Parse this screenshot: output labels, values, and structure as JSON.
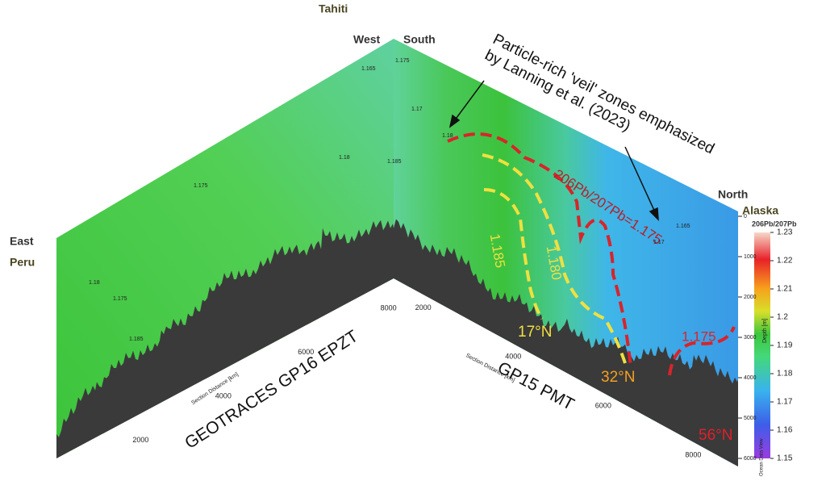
{
  "labels": {
    "tahiti": "Tahiti",
    "west": "West",
    "south": "South",
    "east": "East",
    "peru": "Peru",
    "north": "North",
    "alaska": "Alaska"
  },
  "annotation": {
    "lines": [
      "Particle-rich 'veil' zones emphasized",
      "by Lanning et al. (2023)"
    ]
  },
  "sections": {
    "left": "GEOTRACES GP16 EPZT",
    "right": "GP15 PMT"
  },
  "isolines": {
    "ratio": "206Pb/207Pb=1.175",
    "yellow1": "1.185",
    "yellow2": "1.180",
    "red2": "1.175"
  },
  "latitudes": {
    "lat17": "17°N",
    "lat32": "32°N",
    "lat56": "56°N"
  },
  "contour_labels": [
    "1.165",
    "1.175",
    "1.17",
    "1.18",
    "1.165",
    "1.17",
    "1.185",
    "1.18",
    "1.175",
    "1.175",
    "1.185",
    "1.18"
  ],
  "depth_axis": {
    "label": "Depth [m]",
    "lim": [
      0,
      6000
    ],
    "ticks": [
      0,
      1000,
      2000,
      3000,
      4000,
      5000,
      6000
    ]
  },
  "gp15_distance": {
    "label": "Section Distance [km]",
    "ticks": [
      2000,
      4000,
      6000,
      8000
    ]
  },
  "gp16_distance": {
    "label": "Section Distance [km]",
    "ticks": [
      2000,
      4000,
      6000,
      8000
    ]
  },
  "colorbar": {
    "title": "206Pb/207Pb",
    "lim": [
      1.15,
      1.23
    ],
    "ticks": [
      1.15,
      1.16,
      1.17,
      1.18,
      1.19,
      1.2,
      1.21,
      1.22,
      1.23
    ],
    "credit": "Ocean Data View"
  }
}
